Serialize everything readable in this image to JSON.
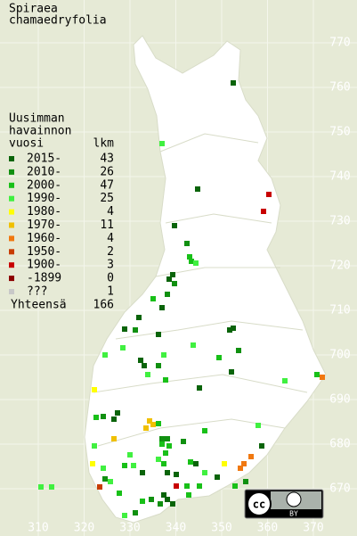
{
  "title": [
    "Spiraea",
    "chamaedryfolia"
  ],
  "legend": {
    "header": [
      "Uusimman",
      "havainnon",
      "vuosi"
    ],
    "count_header": "lkm",
    "items": [
      {
        "label": "2015-",
        "count": 43,
        "color": "#0a640a"
      },
      {
        "label": "2010-",
        "count": 26,
        "color": "#109010"
      },
      {
        "label": "2000-",
        "count": 47,
        "color": "#18c018"
      },
      {
        "label": "1990-",
        "count": 25,
        "color": "#40f040"
      },
      {
        "label": "1980-",
        "count": 4,
        "color": "#ffff00"
      },
      {
        "label": "1970-",
        "count": 11,
        "color": "#f0c000"
      },
      {
        "label": "1960-",
        "count": 4,
        "color": "#f07810"
      },
      {
        "label": "1950-",
        "count": 2,
        "color": "#c83c00"
      },
      {
        "label": "1900-",
        "count": 3,
        "color": "#c80000"
      },
      {
        "label": "-1899",
        "count": 0,
        "color": "#8c0000"
      },
      {
        "label": "???",
        "count": 1,
        "color": "#c8c8c8"
      }
    ],
    "total_label": "Yhteensä",
    "total": 166
  },
  "axes": {
    "yticks": [
      770,
      760,
      750,
      740,
      730,
      720,
      710,
      700,
      690,
      680,
      670
    ],
    "xticks": [
      310,
      320,
      330,
      340,
      350,
      360,
      370
    ]
  },
  "license": {
    "cc": "cc",
    "by": "BY"
  }
}
